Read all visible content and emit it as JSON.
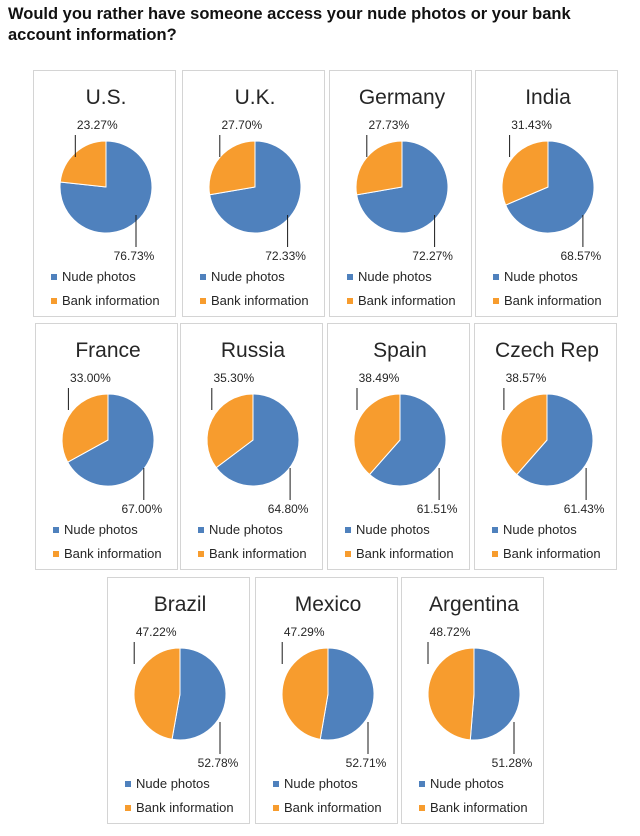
{
  "title": "Would you rather have someone access your nude photos or your bank account information?",
  "colors": {
    "nude": "#4f81bd",
    "bank": "#f79c2e",
    "border": "#d4d4d4",
    "leader": "#1a1a1a"
  },
  "legend": {
    "nude": "Nude photos",
    "bank": "Bank information"
  },
  "chart_data": [
    {
      "type": "pie",
      "title": "U.S.",
      "categories": [
        "Nude photos",
        "Bank information"
      ],
      "values": [
        76.73,
        23.27
      ],
      "labels": [
        "76.73%",
        "23.27%"
      ]
    },
    {
      "type": "pie",
      "title": "U.K.",
      "categories": [
        "Nude photos",
        "Bank information"
      ],
      "values": [
        72.33,
        27.7
      ],
      "labels": [
        "72.33%",
        "27.70%"
      ]
    },
    {
      "type": "pie",
      "title": "Germany",
      "categories": [
        "Nude photos",
        "Bank information"
      ],
      "values": [
        72.27,
        27.73
      ],
      "labels": [
        "72.27%",
        "27.73%"
      ]
    },
    {
      "type": "pie",
      "title": "India",
      "categories": [
        "Nude photos",
        "Bank information"
      ],
      "values": [
        68.57,
        31.43
      ],
      "labels": [
        "68.57%",
        "31.43%"
      ]
    },
    {
      "type": "pie",
      "title": "France",
      "categories": [
        "Nude photos",
        "Bank information"
      ],
      "values": [
        67.0,
        33.0
      ],
      "labels": [
        "67.00%",
        "33.00%"
      ]
    },
    {
      "type": "pie",
      "title": "Russia",
      "categories": [
        "Nude photos",
        "Bank information"
      ],
      "values": [
        64.8,
        35.3
      ],
      "labels": [
        "64.80%",
        "35.30%"
      ]
    },
    {
      "type": "pie",
      "title": "Spain",
      "categories": [
        "Nude photos",
        "Bank information"
      ],
      "values": [
        61.51,
        38.49
      ],
      "labels": [
        "61.51%",
        "38.49%"
      ]
    },
    {
      "type": "pie",
      "title": "Czech Rep",
      "categories": [
        "Nude photos",
        "Bank information"
      ],
      "values": [
        61.43,
        38.57
      ],
      "labels": [
        "61.43%",
        "38.57%"
      ]
    },
    {
      "type": "pie",
      "title": "Brazil",
      "categories": [
        "Nude photos",
        "Bank information"
      ],
      "values": [
        52.78,
        47.22
      ],
      "labels": [
        "52.78%",
        "47.22%"
      ]
    },
    {
      "type": "pie",
      "title": "Mexico",
      "categories": [
        "Nude photos",
        "Bank information"
      ],
      "values": [
        52.71,
        47.29
      ],
      "labels": [
        "52.71%",
        "47.29%"
      ]
    },
    {
      "type": "pie",
      "title": "Argentina",
      "categories": [
        "Nude photos",
        "Bank information"
      ],
      "values": [
        51.28,
        48.72
      ],
      "labels": [
        "51.28%",
        "48.72%"
      ]
    }
  ]
}
